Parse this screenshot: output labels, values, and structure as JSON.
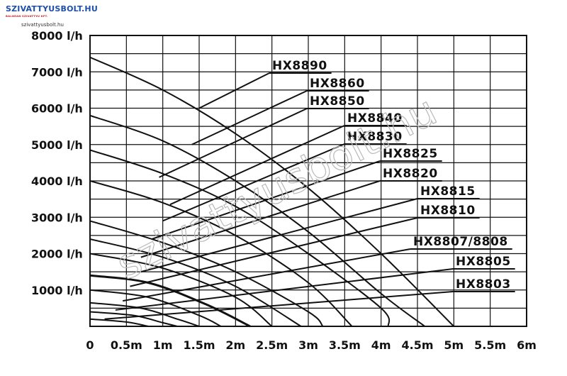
{
  "logo": {
    "brand": "SZIVATTYUSBOLT.HU",
    "tagline": "BALNEAN SZIVATTYU KFT.",
    "site": "szivattyusbolt.hu"
  },
  "watermark": "szivattyusbolt.hu",
  "chart_data": {
    "type": "line",
    "title": "",
    "xlabel": "",
    "ylabel": "",
    "x_ticks": [
      "0",
      "0.5m",
      "1m",
      "1.5m",
      "2m",
      "2.5m",
      "3m",
      "3.5m",
      "4m",
      "4.5m",
      "5m",
      "5.5m",
      "6m"
    ],
    "y_ticks": [
      "1000 l/h",
      "2000 l/h",
      "3000 l/h",
      "4000 l/h",
      "5000 l/h",
      "6000 l/h",
      "7000 l/h",
      "8000 l/h"
    ],
    "xlim": [
      0,
      6
    ],
    "ylim": [
      0,
      8000
    ],
    "grid": true,
    "line_color": "#111111",
    "series": [
      {
        "name": "HX8890",
        "x": [
          0,
          1,
          2,
          3,
          4,
          5
        ],
        "y": [
          7400,
          6500,
          5300,
          3800,
          2000,
          0
        ]
      },
      {
        "name": "HX8860",
        "x": [
          0,
          1,
          2,
          3,
          4,
          4.6
        ],
        "y": [
          5800,
          5100,
          4000,
          2600,
          900,
          0
        ]
      },
      {
        "name": "HX8850",
        "x": [
          0,
          1,
          2,
          3,
          4,
          4.1
        ],
        "y": [
          4850,
          4200,
          3300,
          2000,
          500,
          0
        ]
      },
      {
        "name": "HX8840",
        "x": [
          0,
          1,
          2,
          3,
          3.6
        ],
        "y": [
          4000,
          3400,
          2500,
          1200,
          0
        ]
      },
      {
        "name": "HX8830",
        "x": [
          0,
          1,
          2,
          3,
          3.2
        ],
        "y": [
          2900,
          2300,
          1500,
          400,
          0
        ]
      },
      {
        "name": "HX8825",
        "x": [
          0,
          1,
          2,
          2.9
        ],
        "y": [
          2400,
          1900,
          1100,
          0
        ]
      },
      {
        "name": "HX8820",
        "x": [
          0,
          1,
          2,
          2.5
        ],
        "y": [
          2000,
          1600,
          800,
          0
        ]
      },
      {
        "name": "HX8815",
        "x": [
          0,
          0.8,
          1.6,
          2.2
        ],
        "y": [
          1400,
          1200,
          600,
          0
        ]
      },
      {
        "name": "HX8810",
        "x": [
          0,
          0.8,
          1.5,
          1.8
        ],
        "y": [
          1000,
          800,
          300,
          0
        ]
      },
      {
        "name": "HX8807/8808",
        "x": [
          0,
          0.7,
          1.2,
          1.5
        ],
        "y": [
          650,
          500,
          200,
          0
        ]
      },
      {
        "name": "HX8805",
        "x": [
          0,
          0.6,
          1.0,
          1.2
        ],
        "y": [
          400,
          300,
          100,
          0
        ]
      },
      {
        "name": "HX8803",
        "x": [
          0,
          0.5,
          0.8
        ],
        "y": [
          200,
          120,
          0
        ]
      }
    ]
  }
}
